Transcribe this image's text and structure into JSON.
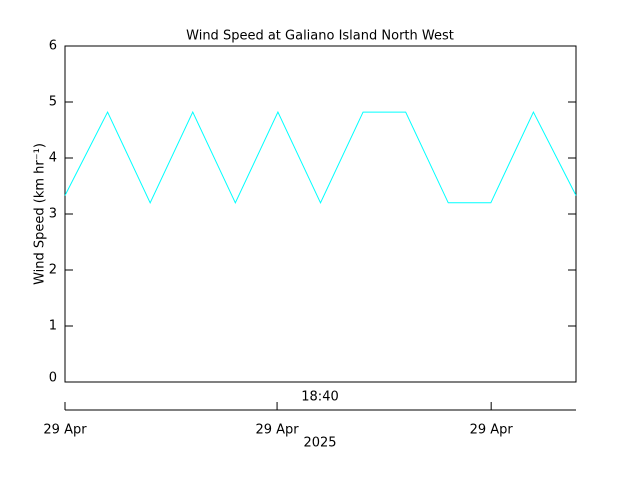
{
  "chart_data": {
    "type": "line",
    "title": "Wind Speed at Galiano Island North West",
    "y_label": "Wind Speed (km hr⁻¹)",
    "categories": [
      null,
      null,
      null,
      null,
      null,
      null,
      null,
      null,
      null,
      null,
      null,
      null,
      null
    ],
    "series": [
      {
        "name": "Wind Speed",
        "color": "#00ffff",
        "values": [
          3.33,
          4.82,
          3.2,
          4.82,
          3.2,
          4.82,
          3.2,
          4.82,
          4.82,
          3.2,
          3.2,
          4.82,
          3.33
        ]
      }
    ],
    "ylim": [
      0,
      6
    ],
    "yticks": [
      0,
      1,
      2,
      3,
      4,
      5,
      6
    ],
    "time_label": "18:40",
    "date_labels": [
      "29 Apr",
      "29 Apr",
      "29 Apr"
    ],
    "year_label": "2025"
  }
}
